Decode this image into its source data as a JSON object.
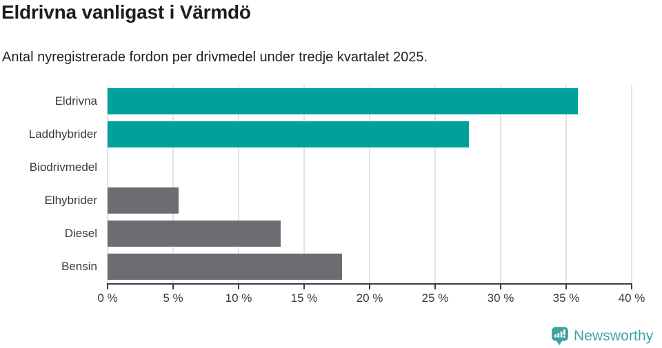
{
  "title": "Eldrivna vanligast i Värmdö",
  "subtitle": "Antal nyregistrerade fordon per drivmedel under tredje kvartalet 2025.",
  "colors": {
    "accent_teal": "#00a19b",
    "bar_gray": "#6c6c72",
    "grid": "#e3e3e3",
    "axis": "#3d3d3d",
    "logo_teal": "#40a2a0"
  },
  "chart_data": {
    "type": "bar",
    "orientation": "horizontal",
    "title": "Eldrivna vanligast i Värmdö",
    "subtitle": "Antal nyregistrerade fordon per drivmedel under tredje kvartalet 2025.",
    "categories": [
      "Eldrivna",
      "Laddhybrider",
      "Biodrivmedel",
      "Elhybrider",
      "Diesel",
      "Bensin"
    ],
    "values": [
      35.9,
      27.6,
      0,
      5.4,
      13.2,
      17.9
    ],
    "unit": "%",
    "xlim": [
      0,
      40
    ],
    "x_ticks": [
      0,
      5,
      10,
      15,
      20,
      25,
      30,
      35,
      40
    ],
    "x_tick_labels": [
      "0 %",
      "5 %",
      "10 %",
      "15 %",
      "20 %",
      "25 %",
      "30 %",
      "35 %",
      "40 %"
    ],
    "grid": true,
    "legend": false,
    "bar_colors": [
      "#00a19b",
      "#00a19b",
      "#6c6c72",
      "#6c6c72",
      "#6c6c72",
      "#6c6c72"
    ]
  },
  "footer": {
    "brand": "Newsworthy",
    "logo_icon": "speech-bubble-bar-chart"
  }
}
